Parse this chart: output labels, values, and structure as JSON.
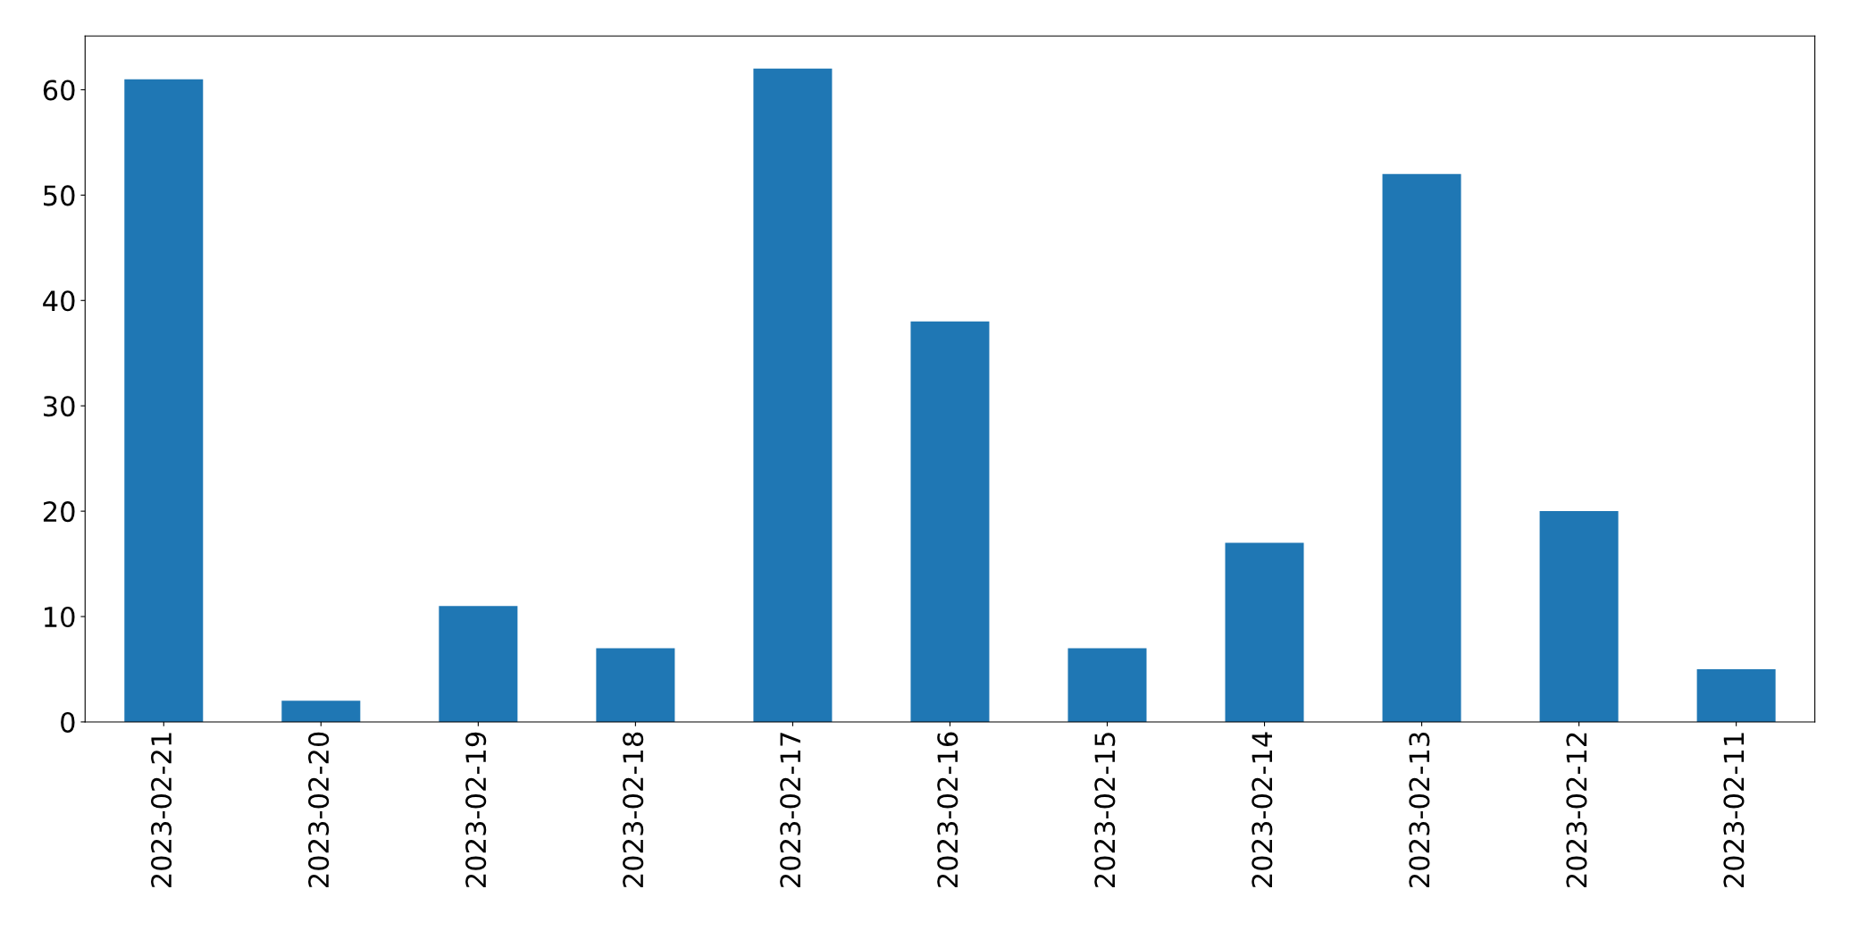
{
  "chart_data": {
    "type": "bar",
    "categories": [
      "2023-02-21",
      "2023-02-20",
      "2023-02-19",
      "2023-02-18",
      "2023-02-17",
      "2023-02-16",
      "2023-02-15",
      "2023-02-14",
      "2023-02-13",
      "2023-02-12",
      "2023-02-11"
    ],
    "values": [
      61,
      2,
      11,
      7,
      62,
      38,
      7,
      17,
      52,
      20,
      5
    ],
    "color": "#1f77b4",
    "ylim": [
      0,
      65.1
    ],
    "yticks": [
      0,
      10,
      20,
      30,
      40,
      50,
      60
    ],
    "grid": false,
    "legend": false
  }
}
